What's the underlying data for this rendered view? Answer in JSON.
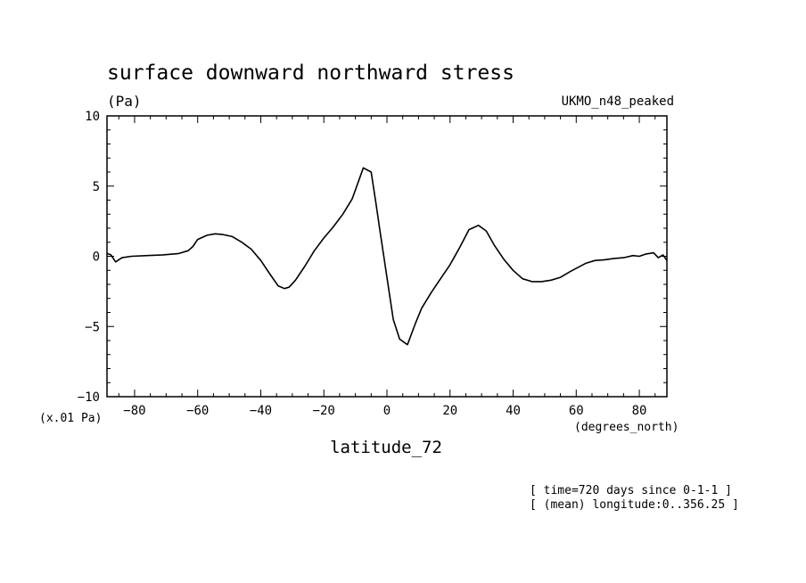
{
  "chart_data": {
    "type": "line",
    "title": "surface downward northward stress",
    "units": "(Pa)",
    "model_label": "UKMO_n48_peaked",
    "scale_note": "(x.01 Pa)",
    "xlabel": "latitude_72",
    "x_units": "(degrees_north)",
    "info_lines": [
      "[ time=720 days since 0-1-1 ]",
      "[ (mean) longitude:0..356.25 ]"
    ],
    "xlim": [
      -88.75,
      88.75
    ],
    "ylim": [
      -10,
      10
    ],
    "x_ticks": [
      -80,
      -60,
      -40,
      -20,
      0,
      20,
      40,
      60,
      80
    ],
    "y_ticks": [
      -10,
      -5,
      0,
      5,
      10
    ],
    "x_tick_labels": [
      "−80",
      "−60",
      "−40",
      "−20",
      "0",
      "20",
      "40",
      "60",
      "80"
    ],
    "y_tick_labels": [
      "−10",
      "−5",
      "0",
      "5",
      "10"
    ],
    "x_minor_step": 5,
    "y_minor_step": 1,
    "line_color": "#000000",
    "series": [
      {
        "x": [
          -88.75,
          -87.5,
          -86,
          -84,
          -81,
          -76,
          -71,
          -66,
          -63,
          -61.5,
          -60,
          -57,
          -54.5,
          -52,
          -49,
          -46,
          -43,
          -40,
          -37,
          -34.5,
          -32.5,
          -31,
          -29,
          -26,
          -23,
          -20,
          -17,
          -14,
          -11,
          -7.5,
          -5,
          -3.5,
          -2,
          0,
          2,
          4,
          6.5,
          9,
          11,
          14,
          17,
          20,
          23,
          26,
          29,
          31.5,
          34,
          37,
          40,
          43,
          46,
          49,
          52,
          55,
          58,
          60.5,
          63,
          66,
          69,
          72,
          75,
          78,
          80,
          82,
          84.5,
          86,
          87.5,
          88.75
        ],
        "y": [
          0.2,
          0.1,
          -0.4,
          -0.1,
          0.0,
          0.05,
          0.1,
          0.2,
          0.4,
          0.7,
          1.2,
          1.5,
          1.6,
          1.55,
          1.4,
          1.0,
          0.5,
          -0.3,
          -1.3,
          -2.1,
          -2.3,
          -2.2,
          -1.7,
          -0.7,
          0.4,
          1.3,
          2.1,
          3.0,
          4.1,
          6.3,
          6.0,
          3.8,
          1.5,
          -1.5,
          -4.5,
          -5.9,
          -6.3,
          -4.8,
          -3.7,
          -2.6,
          -1.6,
          -0.6,
          0.6,
          1.9,
          2.2,
          1.8,
          0.8,
          -0.2,
          -1.0,
          -1.6,
          -1.8,
          -1.8,
          -1.7,
          -1.5,
          -1.1,
          -0.8,
          -0.5,
          -0.3,
          -0.25,
          -0.15,
          -0.1,
          0.05,
          0.0,
          0.15,
          0.25,
          -0.1,
          0.1,
          -0.3
        ]
      }
    ]
  }
}
